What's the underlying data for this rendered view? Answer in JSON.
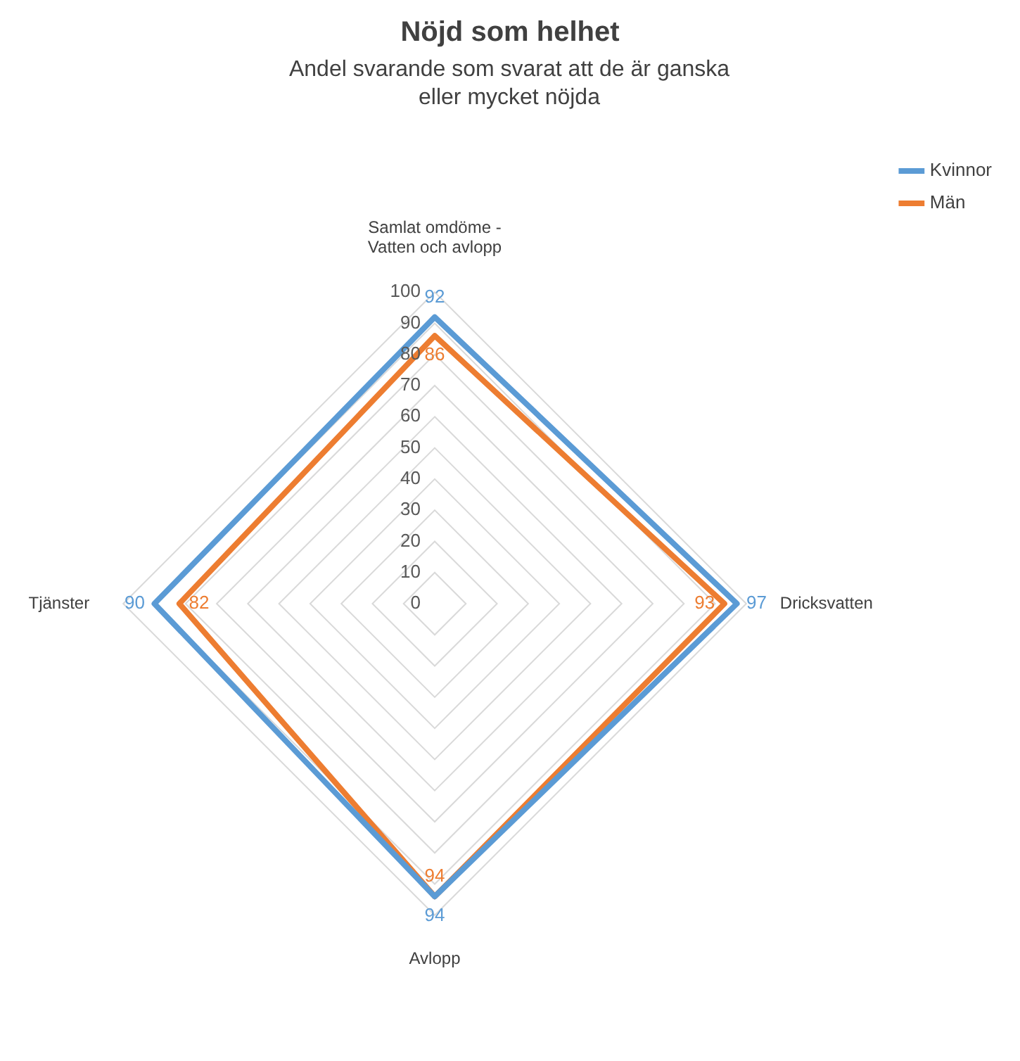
{
  "chart_data": {
    "type": "radar",
    "title": "Nöjd som helhet",
    "subtitle": "Andel svarande som svarat att de är ganska eller mycket nöjda",
    "categories": [
      "Samlat omdöme - Vatten och avlopp",
      "Dricksvatten",
      "Avlopp",
      "Tjänster"
    ],
    "series": [
      {
        "name": "Kvinnor",
        "color": "#5b9bd5",
        "values": [
          92,
          97,
          94,
          90
        ]
      },
      {
        "name": "Män",
        "color": "#ed7d31",
        "values": [
          86,
          93,
          94,
          82
        ]
      }
    ],
    "ylim": [
      0,
      100
    ],
    "yticks": [
      0,
      10,
      20,
      30,
      40,
      50,
      60,
      70,
      80,
      90,
      100
    ],
    "grid": true,
    "legend": "top right",
    "data_labels": true
  }
}
